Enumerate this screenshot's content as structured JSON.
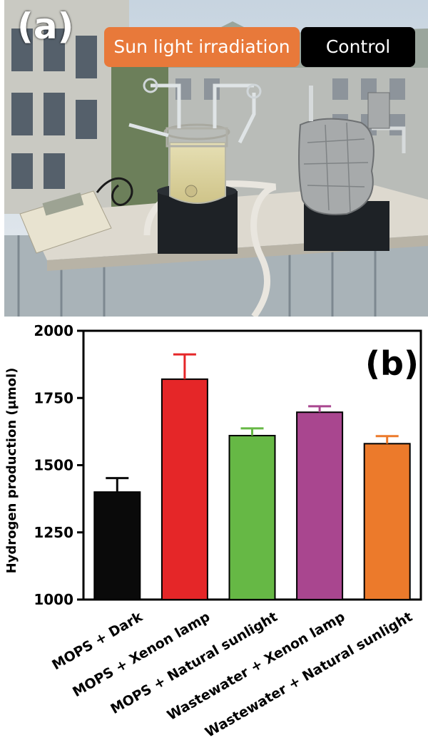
{
  "panel_a": {
    "letter": "(a)",
    "sun_label": "Sun light irradiation",
    "control_label": "Control",
    "colors": {
      "sun_label_bg": "#e8793a",
      "control_label_bg": "#000000"
    }
  },
  "chart_data": {
    "type": "bar",
    "panel_letter": "(b)",
    "ylabel": "Hydrogen production (μmol)",
    "xlabel": "",
    "ylim": [
      1000,
      2000
    ],
    "yticks": [
      1000,
      1250,
      1500,
      1750,
      2000
    ],
    "grid": false,
    "categories": [
      "MOPS + Dark",
      "MOPS + Xenon lamp",
      "MOPS + Natural sunlight",
      "Wastewater + Xenon lamp",
      "Wastewater + Natural sunlight"
    ],
    "values": [
      1400,
      1820,
      1610,
      1697,
      1580
    ],
    "errors": [
      52,
      92,
      27,
      22,
      28
    ],
    "colors": [
      "#0a0a0a",
      "#e52628",
      "#66b845",
      "#a9468f",
      "#ec7a2b"
    ]
  }
}
